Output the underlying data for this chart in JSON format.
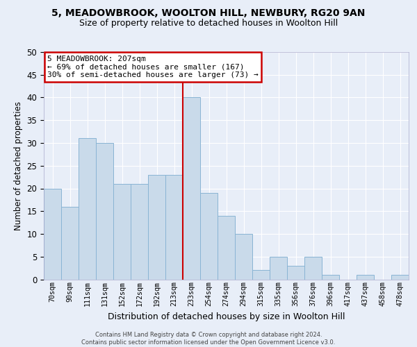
{
  "title1": "5, MEADOWBROOK, WOOLTON HILL, NEWBURY, RG20 9AN",
  "title2": "Size of property relative to detached houses in Woolton Hill",
  "xlabel": "Distribution of detached houses by size in Woolton Hill",
  "ylabel": "Number of detached properties",
  "bar_labels": [
    "70sqm",
    "90sqm",
    "111sqm",
    "131sqm",
    "152sqm",
    "172sqm",
    "192sqm",
    "213sqm",
    "233sqm",
    "254sqm",
    "274sqm",
    "294sqm",
    "315sqm",
    "335sqm",
    "356sqm",
    "376sqm",
    "396sqm",
    "417sqm",
    "437sqm",
    "458sqm",
    "478sqm"
  ],
  "bar_heights": [
    20,
    16,
    31,
    30,
    21,
    21,
    23,
    23,
    40,
    19,
    14,
    10,
    2,
    5,
    3,
    5,
    1,
    0,
    1,
    0,
    1
  ],
  "bar_color": "#c9daea",
  "bar_edge_color": "#89b4d4",
  "background_color": "#e8eef8",
  "grid_color": "#ffffff",
  "vline_pos": 8.5,
  "vline_color": "#cc0000",
  "annotation_text": "5 MEADOWBROOK: 207sqm\n← 69% of detached houses are smaller (167)\n30% of semi-detached houses are larger (73) →",
  "annotation_box_color": "#ffffff",
  "annotation_box_edge": "#cc0000",
  "footer_text": "Contains HM Land Registry data © Crown copyright and database right 2024.\nContains public sector information licensed under the Open Government Licence v3.0.",
  "ylim": [
    0,
    50
  ],
  "yticks": [
    0,
    5,
    10,
    15,
    20,
    25,
    30,
    35,
    40,
    45,
    50
  ]
}
